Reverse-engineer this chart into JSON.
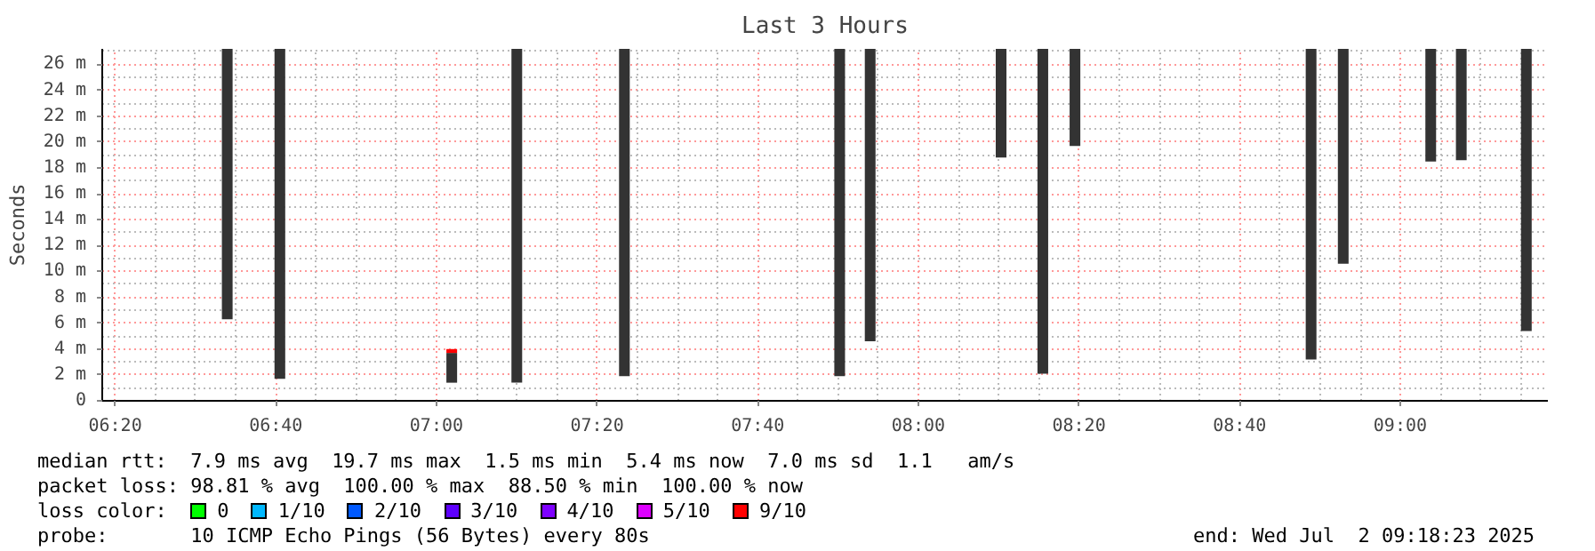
{
  "chart_data": {
    "type": "bar",
    "title": "Last 3 Hours",
    "ylabel": "Seconds",
    "xlim": [
      6.3064,
      9.3064
    ],
    "xticks": [
      {
        "value": 6.3333,
        "label": "06:20"
      },
      {
        "value": 6.6667,
        "label": "06:40"
      },
      {
        "value": 7.0,
        "label": "07:00"
      },
      {
        "value": 7.3333,
        "label": "07:20"
      },
      {
        "value": 7.6667,
        "label": "07:40"
      },
      {
        "value": 8.0,
        "label": "08:00"
      },
      {
        "value": 8.3333,
        "label": "08:20"
      },
      {
        "value": 8.6667,
        "label": "08:40"
      },
      {
        "value": 9.0,
        "label": "09:00"
      }
    ],
    "ylim": [
      0,
      27.2
    ],
    "yticks": [
      0,
      {
        "value": 2,
        "label": "2 m"
      },
      {
        "value": 4,
        "label": "4 m"
      },
      {
        "value": 6,
        "label": "6 m"
      },
      {
        "value": 8,
        "label": "8 m"
      },
      {
        "value": 10,
        "label": "10 m"
      },
      {
        "value": 12,
        "label": "12 m"
      },
      {
        "value": 14,
        "label": "14 m"
      },
      {
        "value": 16,
        "label": "16 m"
      },
      {
        "value": 18,
        "label": "18 m"
      },
      {
        "value": 20,
        "label": "20 m"
      },
      {
        "value": 22,
        "label": "22 m"
      },
      {
        "value": 24,
        "label": "24 m"
      },
      {
        "value": 26,
        "label": "26 m"
      }
    ],
    "grid": true,
    "legend": "bottom",
    "legend_title": "loss color:",
    "series": [
      {
        "color": "#333333",
        "x": [
          6.5658,
          6.675,
          7.0317,
          7.1667,
          7.39,
          7.8367,
          7.9,
          8.1717,
          8.2583,
          8.325,
          8.815,
          8.8817,
          9.0633,
          9.1267,
          9.2617
        ],
        "base": [
          6.3,
          1.7,
          1.4,
          1.4,
          1.9,
          1.9,
          4.6,
          18.8,
          2.1,
          19.7,
          3.2,
          10.6,
          18.5,
          18.6,
          5.4
        ],
        "values": [
          20.9,
          25.5,
          2.3,
          25.8,
          25.3,
          25.3,
          22.6,
          8.4,
          25.1,
          7.5,
          24.0,
          16.6,
          8.7,
          8.6,
          21.8
        ]
      },
      {
        "name": "0",
        "color": "#00ff00"
      },
      {
        "name": "1/10",
        "color": "#00b8ff"
      },
      {
        "name": "2/10",
        "color": "#0059ff"
      },
      {
        "name": "3/10",
        "color": "#5e00ff"
      },
      {
        "name": "4/10",
        "color": "#7e00ff"
      },
      {
        "name": "5/10",
        "color": "#dd00ff"
      },
      {
        "name": "9/10",
        "color": "#ff0000",
        "x": [
          7.0317
        ],
        "base": [
          3.7
        ],
        "values": [
          0.3
        ]
      }
    ],
    "annotations": [
      "median rtt:  7.9 ms avg  19.7 ms max  1.5 ms min  5.4 ms now  7.0 ms sd  1.1   am/s",
      "packet loss: 98.81 % avg  100.00 % max  88.50 % min  100.00 % now",
      "probe:       10 ICMP Echo Pings (56 Bytes) every 80s",
      "end: Wed Jul  2 09:18:23 2025"
    ]
  }
}
